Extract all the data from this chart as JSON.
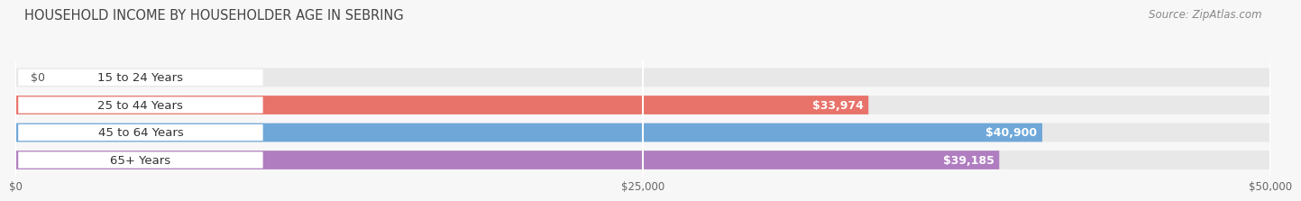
{
  "title": "HOUSEHOLD INCOME BY HOUSEHOLDER AGE IN SEBRING",
  "source": "Source: ZipAtlas.com",
  "categories": [
    "15 to 24 Years",
    "25 to 44 Years",
    "45 to 64 Years",
    "65+ Years"
  ],
  "values": [
    0,
    33974,
    40900,
    39185
  ],
  "bar_colors": [
    "#f5c98a",
    "#e8736a",
    "#6fa8d8",
    "#b07ec0"
  ],
  "bar_bg_color": "#e8e8e8",
  "value_labels": [
    "$0",
    "$33,974",
    "$40,900",
    "$39,185"
  ],
  "x_ticks": [
    0,
    25000,
    50000
  ],
  "x_tick_labels": [
    "$0",
    "$25,000",
    "$50,000"
  ],
  "xlim_max": 50000,
  "title_fontsize": 10.5,
  "source_fontsize": 8.5,
  "cat_label_fontsize": 9.5,
  "value_label_fontsize": 9,
  "tick_fontsize": 8.5,
  "background_color": "#f7f7f7",
  "grid_color": "#ffffff",
  "bar_height": 0.68,
  "bar_gap": 0.32
}
